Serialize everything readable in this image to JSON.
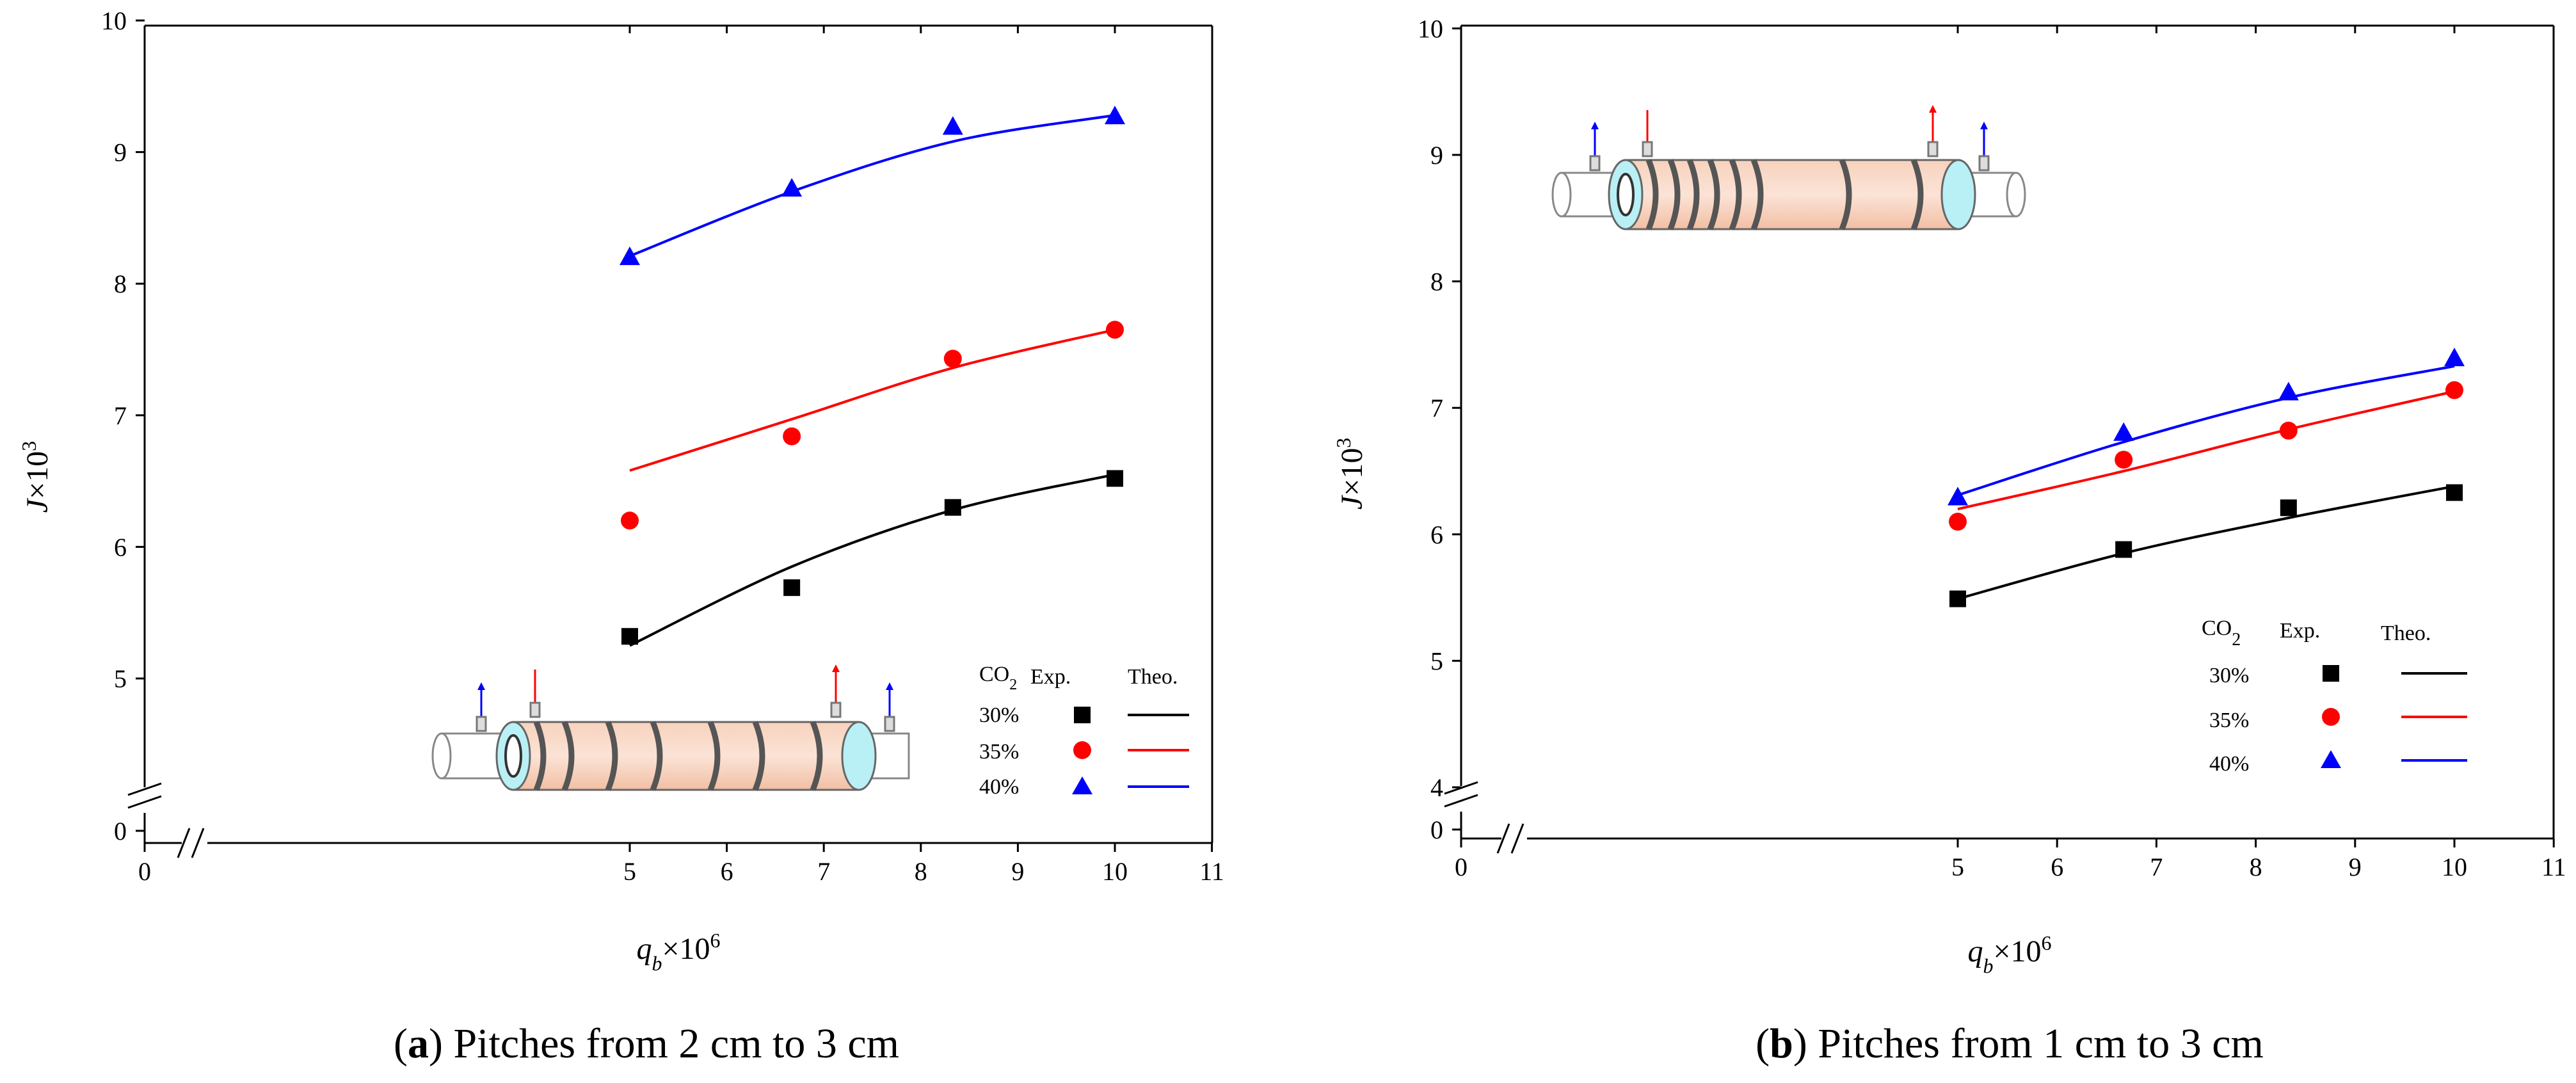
{
  "chart_data": [
    {
      "type": "scatter",
      "panel_label": "a",
      "caption": "Pitches from 2 cm to 3 cm",
      "xlabel": "q_b×10^6",
      "ylabel": "J×10^3",
      "xlim": [
        0,
        11
      ],
      "ylim": [
        0,
        10
      ],
      "y_break": [
        0,
        4.5
      ],
      "x_break": [
        0,
        4.4
      ],
      "xticks": [
        "0",
        "5",
        "6",
        "7",
        "8",
        "9",
        "10",
        "11"
      ],
      "yticks": [
        "0",
        "5",
        "6",
        "7",
        "8",
        "9",
        "10"
      ],
      "legend": {
        "heading": "CO2",
        "col_exp": "Exp.",
        "col_theo": "Theo.",
        "entries": [
          "30%",
          "35%",
          "40%"
        ]
      },
      "series": [
        {
          "name": "30%",
          "color": "#000000",
          "marker": "square",
          "x": [
            5,
            6.67,
            8.33,
            10
          ],
          "exp": [
            5.32,
            5.69,
            6.3,
            6.52
          ],
          "theo": [
            5.25,
            5.85,
            6.28,
            6.55
          ]
        },
        {
          "name": "35%",
          "color": "#ff0000",
          "marker": "circle",
          "x": [
            5,
            6.67,
            8.33,
            10
          ],
          "exp": [
            6.2,
            6.84,
            7.43,
            7.65
          ],
          "theo": [
            6.58,
            6.97,
            7.36,
            7.65
          ]
        },
        {
          "name": "40%",
          "color": "#0000ff",
          "marker": "triangle",
          "x": [
            5,
            6.67,
            8.33,
            10
          ],
          "exp": [
            8.2,
            8.72,
            9.19,
            9.27
          ],
          "theo": [
            8.21,
            8.7,
            9.08,
            9.28
          ]
        }
      ]
    },
    {
      "type": "scatter",
      "panel_label": "b",
      "caption": "Pitches from 1 cm to 3 cm",
      "xlabel": "q_b×10^6",
      "ylabel": "J×10^3",
      "xlim": [
        0,
        11
      ],
      "ylim": [
        0,
        10
      ],
      "y_break": [
        0,
        4
      ],
      "x_break": [
        0,
        4.4
      ],
      "xticks": [
        "0",
        "5",
        "6",
        "7",
        "8",
        "9",
        "10",
        "11"
      ],
      "yticks": [
        "0",
        "4",
        "5",
        "6",
        "7",
        "8",
        "9",
        "10"
      ],
      "legend": {
        "heading": "CO2",
        "col_exp": "Exp.",
        "col_theo": "Theo.",
        "entries": [
          "30%",
          "35%",
          "40%"
        ]
      },
      "series": [
        {
          "name": "30%",
          "color": "#000000",
          "marker": "square",
          "x": [
            5,
            6.67,
            8.33,
            10
          ],
          "exp": [
            5.49,
            5.88,
            6.21,
            6.33
          ],
          "theo": [
            5.49,
            5.85,
            6.13,
            6.38
          ]
        },
        {
          "name": "35%",
          "color": "#ff0000",
          "marker": "circle",
          "x": [
            5,
            6.67,
            8.33,
            10
          ],
          "exp": [
            6.1,
            6.59,
            6.82,
            7.14
          ],
          "theo": [
            6.2,
            6.5,
            6.83,
            7.13
          ]
        },
        {
          "name": "40%",
          "color": "#0000ff",
          "marker": "triangle",
          "x": [
            5,
            6.67,
            8.33,
            10
          ],
          "exp": [
            6.29,
            6.8,
            7.12,
            7.39
          ],
          "theo": [
            6.31,
            6.73,
            7.08,
            7.33
          ]
        }
      ]
    }
  ]
}
